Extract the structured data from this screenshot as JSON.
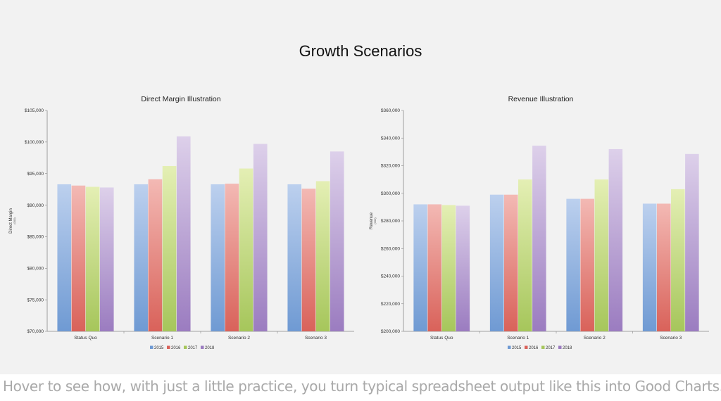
{
  "page": {
    "title": "Growth Scenarios",
    "caption": "Hover to see how, with just a little practice, you turn typical spreadsheet output like this into Good Charts."
  },
  "colors": {
    "2015": [
      "#bcd0ee",
      "#6f9ad3"
    ],
    "2016": [
      "#f3b9b4",
      "#d9625a"
    ],
    "2017": [
      "#e4efb4",
      "#a6c65b"
    ],
    "2018": [
      "#ddd0ea",
      "#9b7cc0"
    ]
  },
  "chart_data": [
    {
      "type": "bar",
      "title": "Direct Margin Illustration",
      "ylabel": "Direct Margin",
      "ylabel_sub": "(000)",
      "categories": [
        "Status Quo",
        "Scenario 1",
        "Scenario 2",
        "Scenario 3"
      ],
      "ylim": [
        70000,
        105000
      ],
      "yticks": [
        70000,
        75000,
        80000,
        85000,
        90000,
        95000,
        100000,
        105000
      ],
      "ytick_labels": [
        "$70,000",
        "$75,000",
        "$80,000",
        "$85,000",
        "$90,000",
        "$95,000",
        "$100,000",
        "$105,000"
      ],
      "grid": false,
      "legend": "bottom",
      "series": [
        {
          "name": "2015",
          "values": [
            93300,
            93300,
            93300,
            93300
          ]
        },
        {
          "name": "2016",
          "values": [
            93100,
            94100,
            93400,
            92600
          ]
        },
        {
          "name": "2017",
          "values": [
            92900,
            96200,
            95800,
            93800
          ]
        },
        {
          "name": "2018",
          "values": [
            92800,
            100900,
            99700,
            98500
          ]
        }
      ]
    },
    {
      "type": "bar",
      "title": "Revenue Illustration",
      "ylabel": "Revenue",
      "ylabel_sub": "(000)",
      "categories": [
        "Status Quo",
        "Scenario 1",
        "Scenario 2",
        "Scenario 3"
      ],
      "ylim": [
        200000,
        360000
      ],
      "yticks": [
        200000,
        220000,
        240000,
        260000,
        280000,
        300000,
        320000,
        340000,
        360000
      ],
      "ytick_labels": [
        "$200,000",
        "$220,000",
        "$240,000",
        "$260,000",
        "$280,000",
        "$300,000",
        "$320,000",
        "$340,000",
        "$360,000"
      ],
      "grid": false,
      "legend": "bottom",
      "series": [
        {
          "name": "2015",
          "values": [
            292000,
            299000,
            296000,
            292500
          ]
        },
        {
          "name": "2016",
          "values": [
            292000,
            299000,
            296000,
            292500
          ]
        },
        {
          "name": "2017",
          "values": [
            291500,
            310000,
            310000,
            303000
          ]
        },
        {
          "name": "2018",
          "values": [
            291000,
            334500,
            332000,
            328500
          ]
        }
      ]
    }
  ]
}
